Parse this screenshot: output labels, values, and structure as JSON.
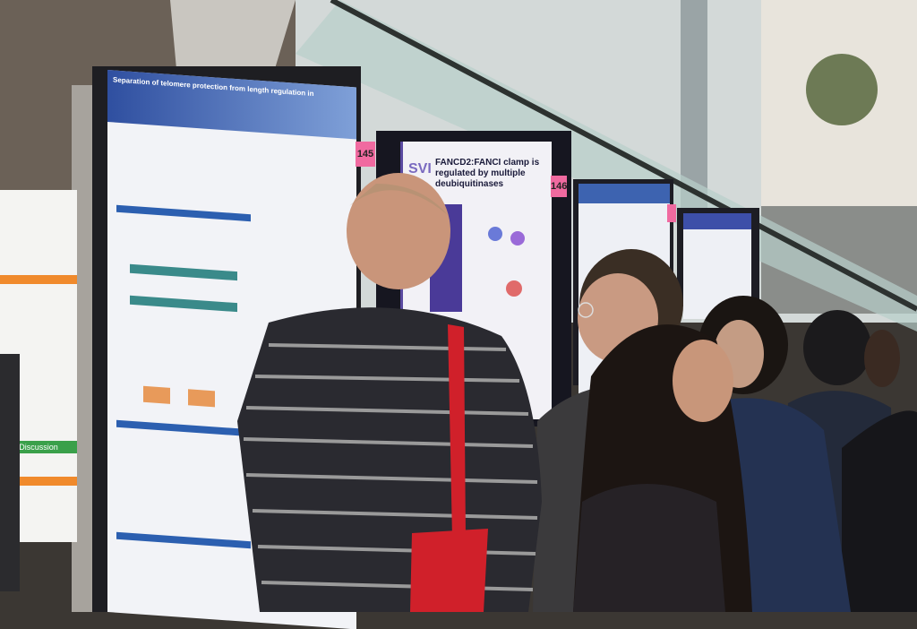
{
  "left_poster": {
    "section": "Discussion"
  },
  "poster_145": {
    "number": "145",
    "title": "Separation of telomere protection from length regulation in"
  },
  "poster_146": {
    "number": "146",
    "logo": "SVI",
    "title": "FANCD2:FANCI clamp is regulated by multiple deubiquitinases"
  }
}
